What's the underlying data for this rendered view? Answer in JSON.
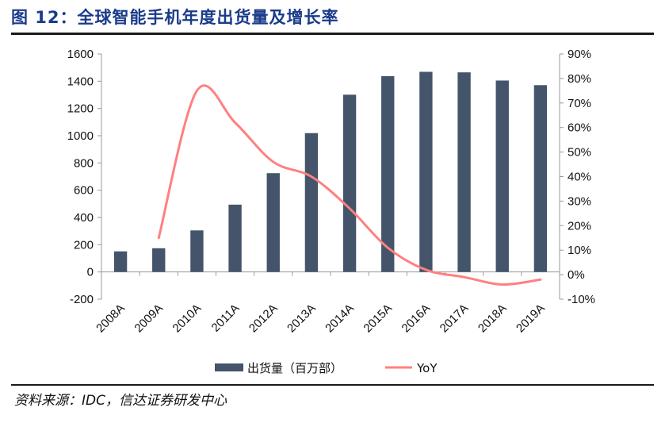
{
  "figure": {
    "title": "图 12：全球智能手机年度出货量及增长率",
    "source": "资料来源：IDC，信达证券研发中心"
  },
  "colors": {
    "bar": "#44546a",
    "line": "#ff8080",
    "title": "#1a3b8a"
  },
  "chart_data": {
    "type": "bar",
    "categories": [
      "2008A",
      "2009A",
      "2010A",
      "2011A",
      "2012A",
      "2013A",
      "2014A",
      "2015A",
      "2016A",
      "2017A",
      "2018A",
      "2019A"
    ],
    "series": [
      {
        "name": "出货量（百万部）",
        "type": "bar",
        "axis": "left",
        "values": [
          151,
          174,
          305,
          494,
          725,
          1019,
          1301,
          1437,
          1469,
          1465,
          1405,
          1371
        ]
      },
      {
        "name": "YoY",
        "type": "line",
        "axis": "right",
        "values": [
          null,
          15,
          75,
          62,
          46,
          40,
          27,
          11,
          2,
          -1,
          -4,
          -2
        ]
      }
    ],
    "y_left": {
      "min": -200,
      "max": 1600,
      "step": 200,
      "ticks": [
        "-200",
        "0",
        "200",
        "400",
        "600",
        "800",
        "1000",
        "1200",
        "1400",
        "1600"
      ]
    },
    "y_right": {
      "min": -10,
      "max": 90,
      "step": 10,
      "ticks": [
        "-10%",
        "0%",
        "10%",
        "20%",
        "30%",
        "40%",
        "50%",
        "60%",
        "70%",
        "80%",
        "90%"
      ]
    },
    "grid": false,
    "legend": "bottom"
  }
}
